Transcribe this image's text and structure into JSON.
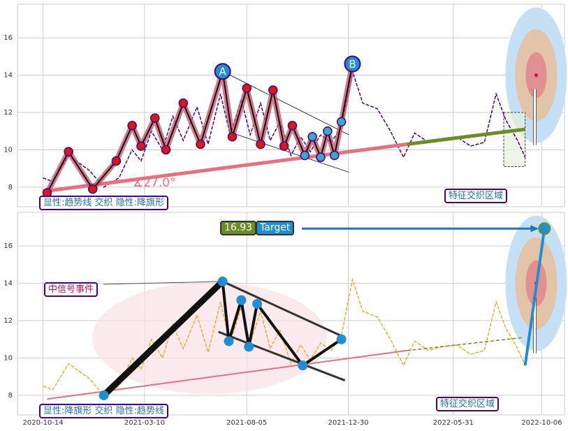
{
  "chart_data": [
    {
      "type": "line",
      "xlim": [
        "2020-09-07",
        "2022-11-08"
      ],
      "ylim": [
        6.95,
        17.8
      ],
      "yticks": [
        8,
        10,
        12,
        14,
        16
      ],
      "grid": true,
      "x": [
        "2020-10-14",
        "2020-10-28",
        "2020-11-20",
        "2020-12-20",
        "2021-01-10",
        "2021-02-01",
        "2021-02-20",
        "2021-03-05",
        "2021-03-20",
        "2021-04-05",
        "2021-04-20",
        "2021-05-05",
        "2021-05-25",
        "2021-06-10",
        "2021-06-28",
        "2021-07-12",
        "2021-07-28",
        "2021-08-10",
        "2021-08-25",
        "2021-09-08",
        "2021-09-22",
        "2021-10-08",
        "2021-10-22",
        "2021-11-05",
        "2021-11-20",
        "2021-12-05",
        "2021-12-20",
        "2022-01-05",
        "2022-01-20",
        "2022-02-10",
        "2022-03-01",
        "2022-03-20",
        "2022-04-05",
        "2022-04-25",
        "2022-05-15",
        "2022-06-05",
        "2022-06-25",
        "2022-07-15",
        "2022-08-01",
        "2022-08-15",
        "2022-09-01",
        "2022-09-12"
      ],
      "series": [
        {
          "color": "#4b0082",
          "values": [
            8.5,
            8.3,
            9.7,
            8.9,
            8.0,
            8.5,
            10.0,
            9.4,
            11.0,
            10.0,
            11.8,
            10.5,
            12.3,
            10.3,
            13.0,
            10.8,
            12.7,
            10.8,
            12.5,
            10.5,
            11.5,
            9.7,
            10.7,
            9.9,
            10.8,
            10.4,
            11.2,
            14.2,
            12.5,
            12.2,
            11.0,
            9.6,
            10.9,
            10.4,
            10.6,
            10.7,
            10.2,
            10.4,
            13.0,
            11.6,
            10.5,
            9.6
          ]
        }
      ],
      "pattern": {
        "color": "#c9566e",
        "marker_color": "#d7191c",
        "x": [
          "2020-10-20",
          "2020-11-20",
          "2020-12-25",
          "2021-01-28",
          "2021-02-20",
          "2021-03-05",
          "2021-03-25",
          "2021-04-10",
          "2021-05-05",
          "2021-05-30",
          "2021-07-01",
          "2021-07-15",
          "2021-08-05",
          "2021-08-25",
          "2021-09-12",
          "2021-09-28",
          "2021-10-10",
          "2021-10-28",
          "2021-11-08",
          "2021-11-20",
          "2021-11-30",
          "2021-12-10",
          "2021-12-20",
          "2022-01-05"
        ],
        "values": [
          7.7,
          9.9,
          7.9,
          9.4,
          11.3,
          10.2,
          11.7,
          10.0,
          12.5,
          10.3,
          14.2,
          10.7,
          13.3,
          10.3,
          13.2,
          10.2,
          11.3,
          9.7,
          10.7,
          9.6,
          11.0,
          9.7,
          11.5,
          14.6
        ]
      },
      "point_labels": [
        "A",
        "B"
      ],
      "trend": {
        "color": "#e8707e",
        "x": [
          "2020-10-20",
          "2022-03-25"
        ],
        "values": [
          7.8,
          10.3
        ]
      },
      "trend_ext": {
        "color": "#6b8e23",
        "x": [
          "2022-03-25",
          "2022-09-12"
        ],
        "values": [
          10.3,
          11.1
        ]
      },
      "channel_upper": {
        "x": [
          "2021-07-01",
          "2021-12-31"
        ],
        "values": [
          14.2,
          10.8
        ]
      },
      "channel_lower": {
        "x": [
          "2021-07-15",
          "2021-12-31"
        ],
        "values": [
          10.9,
          8.8
        ]
      },
      "zone": {
        "x": [
          "2022-08-12",
          "2022-09-12"
        ],
        "values": [
          9.1,
          12.0
        ]
      },
      "target_center": {
        "x": "2022-09-28",
        "y": 14
      },
      "angle_label": "∡27.0°",
      "pattern_label": "显性:趋势线 交织 隐性:降旗形",
      "zone_label": "特征交织区域"
    },
    {
      "type": "line",
      "xlim": [
        "2020-09-07",
        "2022-11-08"
      ],
      "ylim": [
        6.95,
        17.8
      ],
      "yticks": [
        8,
        10,
        12,
        14,
        16
      ],
      "grid": true,
      "xticks": [
        "2020-10-14",
        "2021-03-10",
        "2021-08-05",
        "2021-12-30",
        "2022-05-31",
        "2022-10-06"
      ],
      "x": [
        "2020-10-14",
        "2020-10-28",
        "2020-11-20",
        "2020-12-20",
        "2021-01-10",
        "2021-02-01",
        "2021-02-20",
        "2021-03-05",
        "2021-03-20",
        "2021-04-05",
        "2021-04-20",
        "2021-05-05",
        "2021-05-25",
        "2021-06-10",
        "2021-06-28",
        "2021-07-12",
        "2021-07-28",
        "2021-08-10",
        "2021-08-25",
        "2021-09-08",
        "2021-09-22",
        "2021-10-08",
        "2021-10-22",
        "2021-11-05",
        "2021-11-20",
        "2021-12-05",
        "2021-12-20",
        "2022-01-05",
        "2022-01-20",
        "2022-02-10",
        "2022-03-01",
        "2022-03-20",
        "2022-04-05",
        "2022-04-25",
        "2022-05-15",
        "2022-06-05",
        "2022-06-25",
        "2022-07-15",
        "2022-08-01",
        "2022-08-15",
        "2022-09-01",
        "2022-09-12"
      ],
      "series": [
        {
          "color": "#e6b030",
          "values": [
            8.5,
            8.3,
            9.7,
            8.9,
            8.0,
            8.5,
            10.0,
            9.4,
            11.0,
            10.0,
            11.8,
            10.5,
            12.3,
            10.3,
            13.0,
            10.8,
            12.7,
            10.8,
            12.5,
            10.5,
            11.5,
            9.7,
            10.7,
            9.9,
            10.8,
            10.4,
            11.2,
            14.2,
            12.5,
            12.2,
            11.0,
            9.6,
            10.9,
            10.4,
            10.6,
            10.7,
            10.2,
            10.4,
            13.0,
            11.6,
            10.5,
            9.6
          ]
        }
      ],
      "pole": {
        "x": [
          "2021-01-10",
          "2021-07-01"
        ],
        "values": [
          8.0,
          14.1
        ]
      },
      "flag": {
        "marker_color": "#1f8fd0",
        "x": [
          "2021-07-01",
          "2021-07-10",
          "2021-07-28",
          "2021-08-08",
          "2021-08-20",
          "2021-10-25",
          "2021-12-20"
        ],
        "values": [
          14.1,
          10.9,
          13.1,
          10.6,
          12.9,
          9.6,
          11.0
        ]
      },
      "trend": {
        "color": "#e8707e",
        "x": [
          "2020-10-20",
          "2022-03-25"
        ],
        "values": [
          7.8,
          10.4
        ]
      },
      "trend_ext": {
        "color": "#6b8e23",
        "x": [
          "2022-03-25",
          "2022-09-10"
        ],
        "values": [
          10.4,
          11.1
        ]
      },
      "channel_upper": {
        "x": [
          "2021-07-01",
          "2021-12-25"
        ],
        "values": [
          14.1,
          11.1
        ]
      },
      "channel_lower": {
        "x": [
          "2021-06-25",
          "2021-12-25"
        ],
        "values": [
          11.4,
          8.8
        ]
      },
      "target_center": {
        "x": "2022-09-28",
        "y": 14
      },
      "target_line": {
        "x": [
          "2022-09-12",
          "2022-10-10"
        ],
        "values": [
          9.6,
          16.93
        ]
      },
      "target_value": 16.93,
      "target_label": "Target",
      "event_label": "中信号事件",
      "pattern_label": "显性:降旗形 交织 隐性:趋势线",
      "zone_label": "特征交织区域"
    }
  ]
}
